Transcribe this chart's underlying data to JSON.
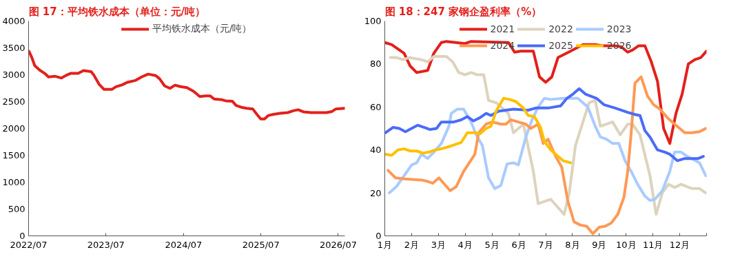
{
  "chart_data": [
    {
      "type": "line",
      "title": "图 17：平均铁水成本（单位：元/吨）",
      "legend": "top",
      "grid": false,
      "x": [
        "2022-07-03",
        "2022-07-16",
        "2022-07-30",
        "2022-08-21",
        "2022-09-15",
        "2022-10-03",
        "2022-11-02",
        "2022-12-03",
        "2022-12-27",
        "2023-01-15",
        "2023-02-20",
        "2023-03-17",
        "2023-04-22",
        "2023-05-05",
        "2023-05-29",
        "2023-06-22",
        "2023-07-29",
        "2023-08-16",
        "2023-09-16",
        "2023-10-10",
        "2023-11-16",
        "2023-12-16",
        "2024-01-16",
        "2024-02-21",
        "2024-03-10",
        "2024-04-03",
        "2024-04-28",
        "2024-05-22",
        "2024-06-16",
        "2024-07-17",
        "2024-08-17",
        "2024-09-16",
        "2024-10-11",
        "2024-11-04",
        "2024-11-22",
        "2024-12-29",
        "2025-01-16",
        "2025-02-16",
        "2025-03-06",
        "2025-03-30",
        "2025-04-24",
        "2025-05-24",
        "2025-06-12",
        "2025-06-30",
        "2025-07-18",
        "2025-08-06",
        "2025-08-30",
        "2025-09-30",
        "2025-11-05",
        "2025-11-30",
        "2025-12-24",
        "2026-01-18",
        "2026-02-23",
        "2026-04-01",
        "2026-05-07",
        "2026-06-01",
        "2026-06-19",
        "2026-08-01"
      ],
      "series": [
        {
          "name": "平均铁水成本（元/吨）",
          "color": "#e3201b",
          "values": [
            3436,
            3323,
            3170,
            3090,
            3025,
            2958,
            2972,
            2938,
            2992,
            3025,
            3025,
            3078,
            3058,
            2992,
            2826,
            2726,
            2726,
            2773,
            2812,
            2859,
            2892,
            2958,
            3011,
            2985,
            2925,
            2792,
            2746,
            2806,
            2779,
            2759,
            2693,
            2594,
            2607,
            2607,
            2547,
            2534,
            2514,
            2507,
            2428,
            2395,
            2375,
            2361,
            2262,
            2176,
            2176,
            2242,
            2262,
            2282,
            2295,
            2328,
            2348,
            2308,
            2295,
            2295,
            2295,
            2315,
            2361,
            2375
          ]
        }
      ],
      "xlim": [
        "2022-07-01",
        "2026-08-01"
      ],
      "xticks": [
        {
          "value": "2022-07-01",
          "label": "2022/07"
        },
        {
          "value": "2023-07-01",
          "label": "2023/07"
        },
        {
          "value": "2024-07-01",
          "label": "2024/07"
        },
        {
          "value": "2025-07-01",
          "label": "2025/07"
        },
        {
          "value": "2026-07-01",
          "label": "2026/07"
        }
      ],
      "ylim": [
        0,
        4000
      ],
      "yticks": [
        0,
        500,
        1000,
        1500,
        2000,
        2500,
        3000,
        3500,
        4000
      ]
    },
    {
      "type": "line",
      "title": "图 18：247 家钢企盈利率（%）",
      "legend": "top",
      "grid": false,
      "xlim": [
        1,
        13
      ],
      "xticks": [
        {
          "value": 1,
          "label": "1月"
        },
        {
          "value": 2,
          "label": "2月"
        },
        {
          "value": 3,
          "label": "3月"
        },
        {
          "value": 4,
          "label": "4月"
        },
        {
          "value": 5,
          "label": "5月"
        },
        {
          "value": 6,
          "label": "6月"
        },
        {
          "value": 7,
          "label": "7月"
        },
        {
          "value": 8,
          "label": "8月"
        },
        {
          "value": 9,
          "label": "9月"
        },
        {
          "value": 10,
          "label": "10月"
        },
        {
          "value": 11,
          "label": "11月"
        },
        {
          "value": 12,
          "label": "12月"
        },
        {
          "value": 13,
          "label": null
        }
      ],
      "ylim": [
        0,
        100
      ],
      "yticks": [
        0,
        20,
        40,
        60,
        80,
        100
      ],
      "series": [
        {
          "name": "2021",
          "color": "#e3201b",
          "x": [
            1.0,
            1.26,
            1.49,
            1.72,
            1.95,
            2.19,
            2.6,
            2.83,
            3.11,
            3.3,
            3.99,
            4.22,
            5.61,
            5.84,
            6.07,
            6.54,
            6.77,
            7.0,
            7.23,
            7.46,
            7.93,
            8.39,
            8.85,
            9.13,
            9.59,
            9.82,
            10.06,
            10.24,
            10.47,
            10.7,
            10.94,
            11.17,
            11.4,
            11.63,
            11.86,
            12.09,
            12.32,
            12.56,
            12.79,
            13.0
          ],
          "values": [
            90,
            89,
            87,
            85,
            79,
            76,
            77,
            85,
            90,
            90.5,
            89.5,
            90.5,
            90,
            85.5,
            86,
            86,
            74,
            71.5,
            74,
            83,
            86,
            89,
            89,
            88.5,
            88.5,
            88,
            85.5,
            86.5,
            88.5,
            88.5,
            81,
            72,
            50,
            43,
            57,
            66,
            80,
            82,
            83,
            86
          ]
        },
        {
          "name": "2022",
          "color": "#ddd3bd",
          "x": [
            1.21,
            1.44,
            1.68,
            1.91,
            2.37,
            2.6,
            2.83,
            3.3,
            3.53,
            3.76,
            3.99,
            4.22,
            4.45,
            4.69,
            4.87,
            5.15,
            5.61,
            5.8,
            6.17,
            6.54,
            6.72,
            7.19,
            7.69,
            7.88,
            8.11,
            8.62,
            8.85,
            9.04,
            9.5,
            9.78,
            10.06,
            10.24,
            10.52,
            10.89,
            11.12,
            11.35,
            11.58,
            11.81,
            12.05,
            12.46,
            12.74,
            12.97
          ],
          "values": [
            83,
            83,
            82,
            83,
            82,
            81,
            83.5,
            83.5,
            81,
            76,
            75,
            76,
            75,
            75,
            63,
            62,
            57,
            48,
            52,
            30,
            15,
            17,
            10,
            20,
            42,
            62,
            63,
            51,
            53,
            47,
            52,
            52,
            47,
            28,
            10,
            20,
            24,
            22.5,
            24,
            22,
            22,
            20
          ]
        },
        {
          "name": "2023",
          "color": "#a9cbff",
          "x": [
            1.17,
            1.44,
            1.72,
            2.0,
            2.19,
            2.37,
            2.6,
            2.83,
            3.11,
            3.39,
            3.48,
            3.71,
            3.94,
            4.22,
            4.41,
            4.64,
            4.87,
            5.1,
            5.33,
            5.56,
            5.8,
            5.98,
            6.26,
            6.49,
            6.72,
            6.95,
            7.19,
            7.65,
            8.02,
            8.2,
            8.57,
            8.85,
            9.04,
            9.27,
            9.5,
            9.73,
            9.96,
            10.19,
            10.43,
            10.7,
            10.89,
            11.07,
            11.35,
            11.63,
            11.81,
            12.05,
            12.28,
            12.51,
            12.74,
            12.97
          ],
          "values": [
            20,
            23,
            28,
            33,
            34,
            38,
            36,
            39,
            43,
            51,
            57,
            59,
            59,
            53,
            47,
            42,
            27,
            22,
            23.5,
            33.5,
            34,
            33,
            46,
            54,
            60,
            64,
            63.5,
            64,
            64,
            64,
            60,
            51,
            46,
            45,
            43,
            43,
            35,
            30,
            24,
            18.5,
            16.5,
            17,
            21,
            30,
            39,
            39,
            37,
            35.5,
            34,
            28
          ]
        },
        {
          "name": "2024",
          "color": "#ff9955",
          "x": [
            1.12,
            1.4,
            1.72,
            2.37,
            2.56,
            2.79,
            3.02,
            3.44,
            3.67,
            3.94,
            4.36,
            4.5,
            4.78,
            5.01,
            5.33,
            5.52,
            5.7,
            5.98,
            6.26,
            6.44,
            6.72,
            6.91,
            7.09,
            7.37,
            7.6,
            7.83,
            8.06,
            8.3,
            8.53,
            8.76,
            8.99,
            9.22,
            9.45,
            9.69,
            9.92,
            10.06,
            10.19,
            10.33,
            10.56,
            10.8,
            11.03,
            11.26,
            11.54,
            11.81,
            12.19,
            12.46,
            12.74,
            12.97
          ],
          "values": [
            30.5,
            27,
            26.5,
            26,
            25.5,
            24.5,
            27,
            21,
            23,
            30,
            38,
            48,
            52,
            53,
            52,
            52,
            54,
            53,
            52,
            50,
            52,
            43,
            45,
            37,
            32,
            16,
            6.5,
            5,
            4.5,
            1,
            4,
            4.5,
            6,
            10,
            18,
            30,
            48,
            71,
            74,
            65,
            61,
            59,
            55,
            52,
            48,
            48,
            48.5,
            50
          ]
        },
        {
          "name": "2025",
          "color": "#4a6cf7",
          "x": [
            1.03,
            1.31,
            1.54,
            1.77,
            2.0,
            2.23,
            2.46,
            2.69,
            2.93,
            3.11,
            3.57,
            3.85,
            4.08,
            4.31,
            4.55,
            4.78,
            4.96,
            5.24,
            5.8,
            6.35,
            6.63,
            7.09,
            7.56,
            7.79,
            8.02,
            8.25,
            8.48,
            8.9,
            9.18,
            9.59,
            10.06,
            10.33,
            10.52,
            10.7,
            10.89,
            11.17,
            11.44,
            11.63,
            11.91,
            12.19,
            12.46,
            12.69,
            12.88
          ],
          "values": [
            48,
            50.5,
            50,
            48.5,
            50,
            51.5,
            50.5,
            49.5,
            50,
            53,
            53,
            54,
            55.5,
            53.5,
            55,
            57,
            56,
            58,
            59,
            58.5,
            59.5,
            59.5,
            60.5,
            64,
            66,
            68.5,
            66,
            64,
            61,
            59.5,
            57.5,
            56.5,
            56,
            49,
            46,
            40,
            39,
            38,
            35,
            36,
            36,
            36,
            37
          ]
        },
        {
          "name": "2026",
          "color": "#ffc000",
          "x": [
            1.03,
            1.26,
            1.49,
            1.72,
            1.95,
            2.19,
            2.42,
            2.65,
            2.88,
            3.11,
            3.39,
            3.62,
            3.85,
            4.08,
            4.36,
            4.55,
            4.78,
            4.96,
            5.15,
            5.43,
            5.66,
            5.89,
            6.17,
            6.35,
            6.58,
            6.81,
            6.95,
            7.19,
            7.42,
            7.65,
            7.93
          ],
          "values": [
            38,
            37.5,
            40,
            40.5,
            39.5,
            39.5,
            38.5,
            39,
            40,
            40.5,
            41.5,
            42.5,
            43.5,
            48,
            48,
            47.5,
            50,
            51,
            58,
            64,
            63.5,
            62.5,
            59.5,
            56,
            55.5,
            50.5,
            44,
            40,
            37.5,
            35,
            34
          ]
        }
      ]
    }
  ]
}
